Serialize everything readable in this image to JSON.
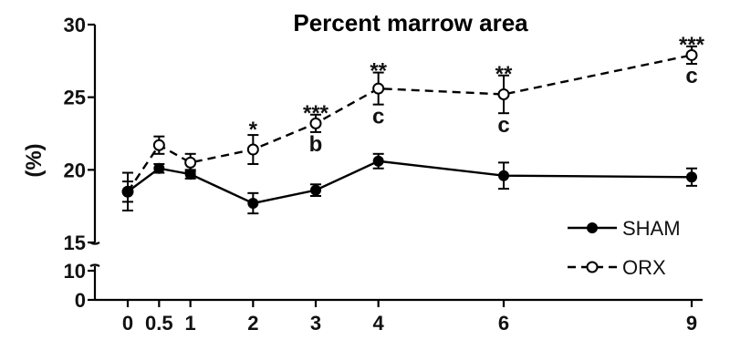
{
  "chart_data": {
    "type": "line",
    "title": "Percent marrow area",
    "ylabel": "(%)",
    "xlabel": "",
    "x_ticks": [
      "0",
      "0.5",
      "1",
      "2",
      "3",
      "4",
      "6",
      "9"
    ],
    "y_ticks_upper": [
      "15",
      "20",
      "25",
      "30"
    ],
    "y_ticks_lower": [
      "0",
      "10"
    ],
    "ylim_upper": [
      15,
      30
    ],
    "ylim_lower": [
      0,
      12
    ],
    "axis_break": true,
    "grid": false,
    "legend_position": "bottom-right",
    "series": [
      {
        "name": "SHAM",
        "style": "solid",
        "marker": "filled-circle",
        "x": [
          0,
          0.5,
          1,
          2,
          3,
          4,
          6,
          9
        ],
        "y": [
          18.5,
          20.1,
          19.7,
          17.7,
          18.6,
          20.6,
          19.6,
          19.5
        ],
        "err": [
          0.7,
          0.3,
          0.3,
          0.7,
          0.4,
          0.5,
          0.9,
          0.6
        ]
      },
      {
        "name": "ORX",
        "style": "dashed",
        "marker": "open-circle",
        "x": [
          0,
          0.5,
          1,
          2,
          3,
          4,
          6,
          9
        ],
        "y": [
          18.5,
          21.7,
          20.5,
          21.4,
          23.2,
          25.6,
          25.2,
          27.9
        ],
        "err": [
          1.3,
          0.6,
          0.6,
          1.0,
          0.6,
          1.1,
          1.3,
          0.6
        ]
      }
    ],
    "annotations": [
      {
        "x": 2,
        "y": 21.4,
        "stars": "*",
        "letter": ""
      },
      {
        "x": 3,
        "y": 23.2,
        "stars": "***",
        "letter": "b"
      },
      {
        "x": 4,
        "y": 25.6,
        "stars": "**",
        "letter": "c"
      },
      {
        "x": 6,
        "y": 25.2,
        "stars": "**",
        "letter": "c"
      },
      {
        "x": 9,
        "y": 27.9,
        "stars": "***",
        "letter": "c"
      }
    ]
  }
}
